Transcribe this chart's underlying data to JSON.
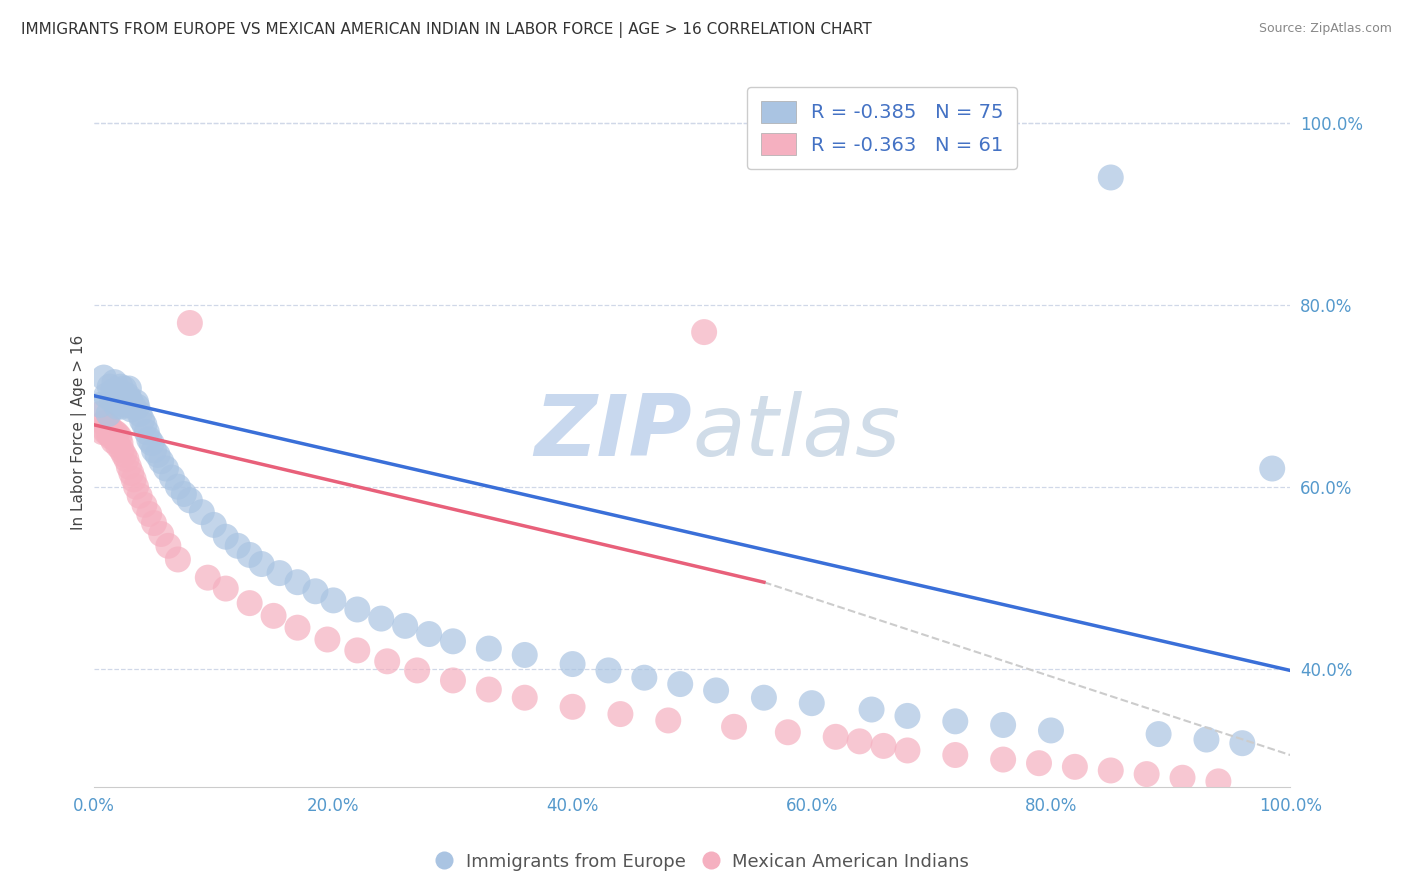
{
  "title": "IMMIGRANTS FROM EUROPE VS MEXICAN AMERICAN INDIAN IN LABOR FORCE | AGE > 16 CORRELATION CHART",
  "source": "Source: ZipAtlas.com",
  "ylabel": "In Labor Force | Age > 16",
  "xlim": [
    0.0,
    1.0
  ],
  "ylim": [
    0.27,
    1.05
  ],
  "legend_entry1": "R = -0.385   N = 75",
  "legend_entry2": "R = -0.363   N = 61",
  "color_blue": "#aac4e2",
  "color_pink": "#f5b0c0",
  "line_blue": "#3a6fd8",
  "line_pink": "#e8607a",
  "line_dashed_color": "#cccccc",
  "watermark": "ZIPatlas",
  "background": "#ffffff",
  "grid_color": "#d0d8e8",
  "blue_x": [
    0.005,
    0.008,
    0.01,
    0.012,
    0.013,
    0.015,
    0.016,
    0.017,
    0.018,
    0.019,
    0.02,
    0.021,
    0.022,
    0.022,
    0.023,
    0.024,
    0.025,
    0.025,
    0.026,
    0.027,
    0.028,
    0.029,
    0.03,
    0.031,
    0.033,
    0.035,
    0.036,
    0.038,
    0.04,
    0.042,
    0.044,
    0.046,
    0.048,
    0.05,
    0.053,
    0.056,
    0.06,
    0.065,
    0.07,
    0.075,
    0.08,
    0.09,
    0.1,
    0.11,
    0.12,
    0.13,
    0.14,
    0.155,
    0.17,
    0.185,
    0.2,
    0.22,
    0.24,
    0.26,
    0.28,
    0.3,
    0.33,
    0.36,
    0.4,
    0.43,
    0.46,
    0.49,
    0.52,
    0.56,
    0.6,
    0.65,
    0.68,
    0.72,
    0.76,
    0.8,
    0.85,
    0.89,
    0.93,
    0.96,
    0.985
  ],
  "blue_y": [
    0.69,
    0.72,
    0.7,
    0.68,
    0.71,
    0.695,
    0.705,
    0.715,
    0.7,
    0.688,
    0.692,
    0.705,
    0.71,
    0.698,
    0.688,
    0.693,
    0.7,
    0.708,
    0.695,
    0.69,
    0.7,
    0.708,
    0.695,
    0.685,
    0.688,
    0.693,
    0.688,
    0.68,
    0.673,
    0.668,
    0.66,
    0.652,
    0.648,
    0.64,
    0.635,
    0.628,
    0.62,
    0.61,
    0.6,
    0.592,
    0.585,
    0.572,
    0.558,
    0.545,
    0.535,
    0.525,
    0.515,
    0.505,
    0.495,
    0.485,
    0.475,
    0.465,
    0.455,
    0.447,
    0.438,
    0.43,
    0.422,
    0.415,
    0.405,
    0.398,
    0.39,
    0.383,
    0.376,
    0.368,
    0.362,
    0.355,
    0.348,
    0.342,
    0.338,
    0.332,
    0.94,
    0.328,
    0.322,
    0.318,
    0.62
  ],
  "pink_x": [
    0.005,
    0.007,
    0.008,
    0.01,
    0.011,
    0.012,
    0.013,
    0.014,
    0.015,
    0.016,
    0.017,
    0.018,
    0.019,
    0.02,
    0.021,
    0.022,
    0.023,
    0.025,
    0.027,
    0.029,
    0.031,
    0.033,
    0.035,
    0.038,
    0.042,
    0.046,
    0.05,
    0.056,
    0.062,
    0.07,
    0.08,
    0.095,
    0.11,
    0.13,
    0.15,
    0.17,
    0.195,
    0.22,
    0.245,
    0.27,
    0.3,
    0.33,
    0.36,
    0.4,
    0.44,
    0.48,
    0.51,
    0.535,
    0.58,
    0.62,
    0.64,
    0.66,
    0.68,
    0.72,
    0.76,
    0.79,
    0.82,
    0.85,
    0.88,
    0.91,
    0.94
  ],
  "pink_y": [
    0.68,
    0.66,
    0.67,
    0.66,
    0.668,
    0.658,
    0.665,
    0.655,
    0.66,
    0.65,
    0.66,
    0.652,
    0.658,
    0.645,
    0.655,
    0.648,
    0.64,
    0.635,
    0.63,
    0.622,
    0.615,
    0.608,
    0.6,
    0.59,
    0.58,
    0.57,
    0.56,
    0.548,
    0.535,
    0.52,
    0.78,
    0.5,
    0.488,
    0.472,
    0.458,
    0.445,
    0.432,
    0.42,
    0.408,
    0.398,
    0.387,
    0.377,
    0.368,
    0.358,
    0.35,
    0.343,
    0.77,
    0.336,
    0.33,
    0.325,
    0.32,
    0.315,
    0.31,
    0.305,
    0.3,
    0.296,
    0.292,
    0.288,
    0.284,
    0.28,
    0.276
  ],
  "blue_line": {
    "x0": 0.0,
    "x1": 1.0,
    "y0": 0.7,
    "y1": 0.398
  },
  "pink_solid_line": {
    "x0": 0.0,
    "x1": 0.56,
    "y0": 0.668,
    "y1": 0.495
  },
  "pink_dash_line": {
    "x0": 0.56,
    "x1": 1.0,
    "y0": 0.495,
    "y1": 0.305
  }
}
